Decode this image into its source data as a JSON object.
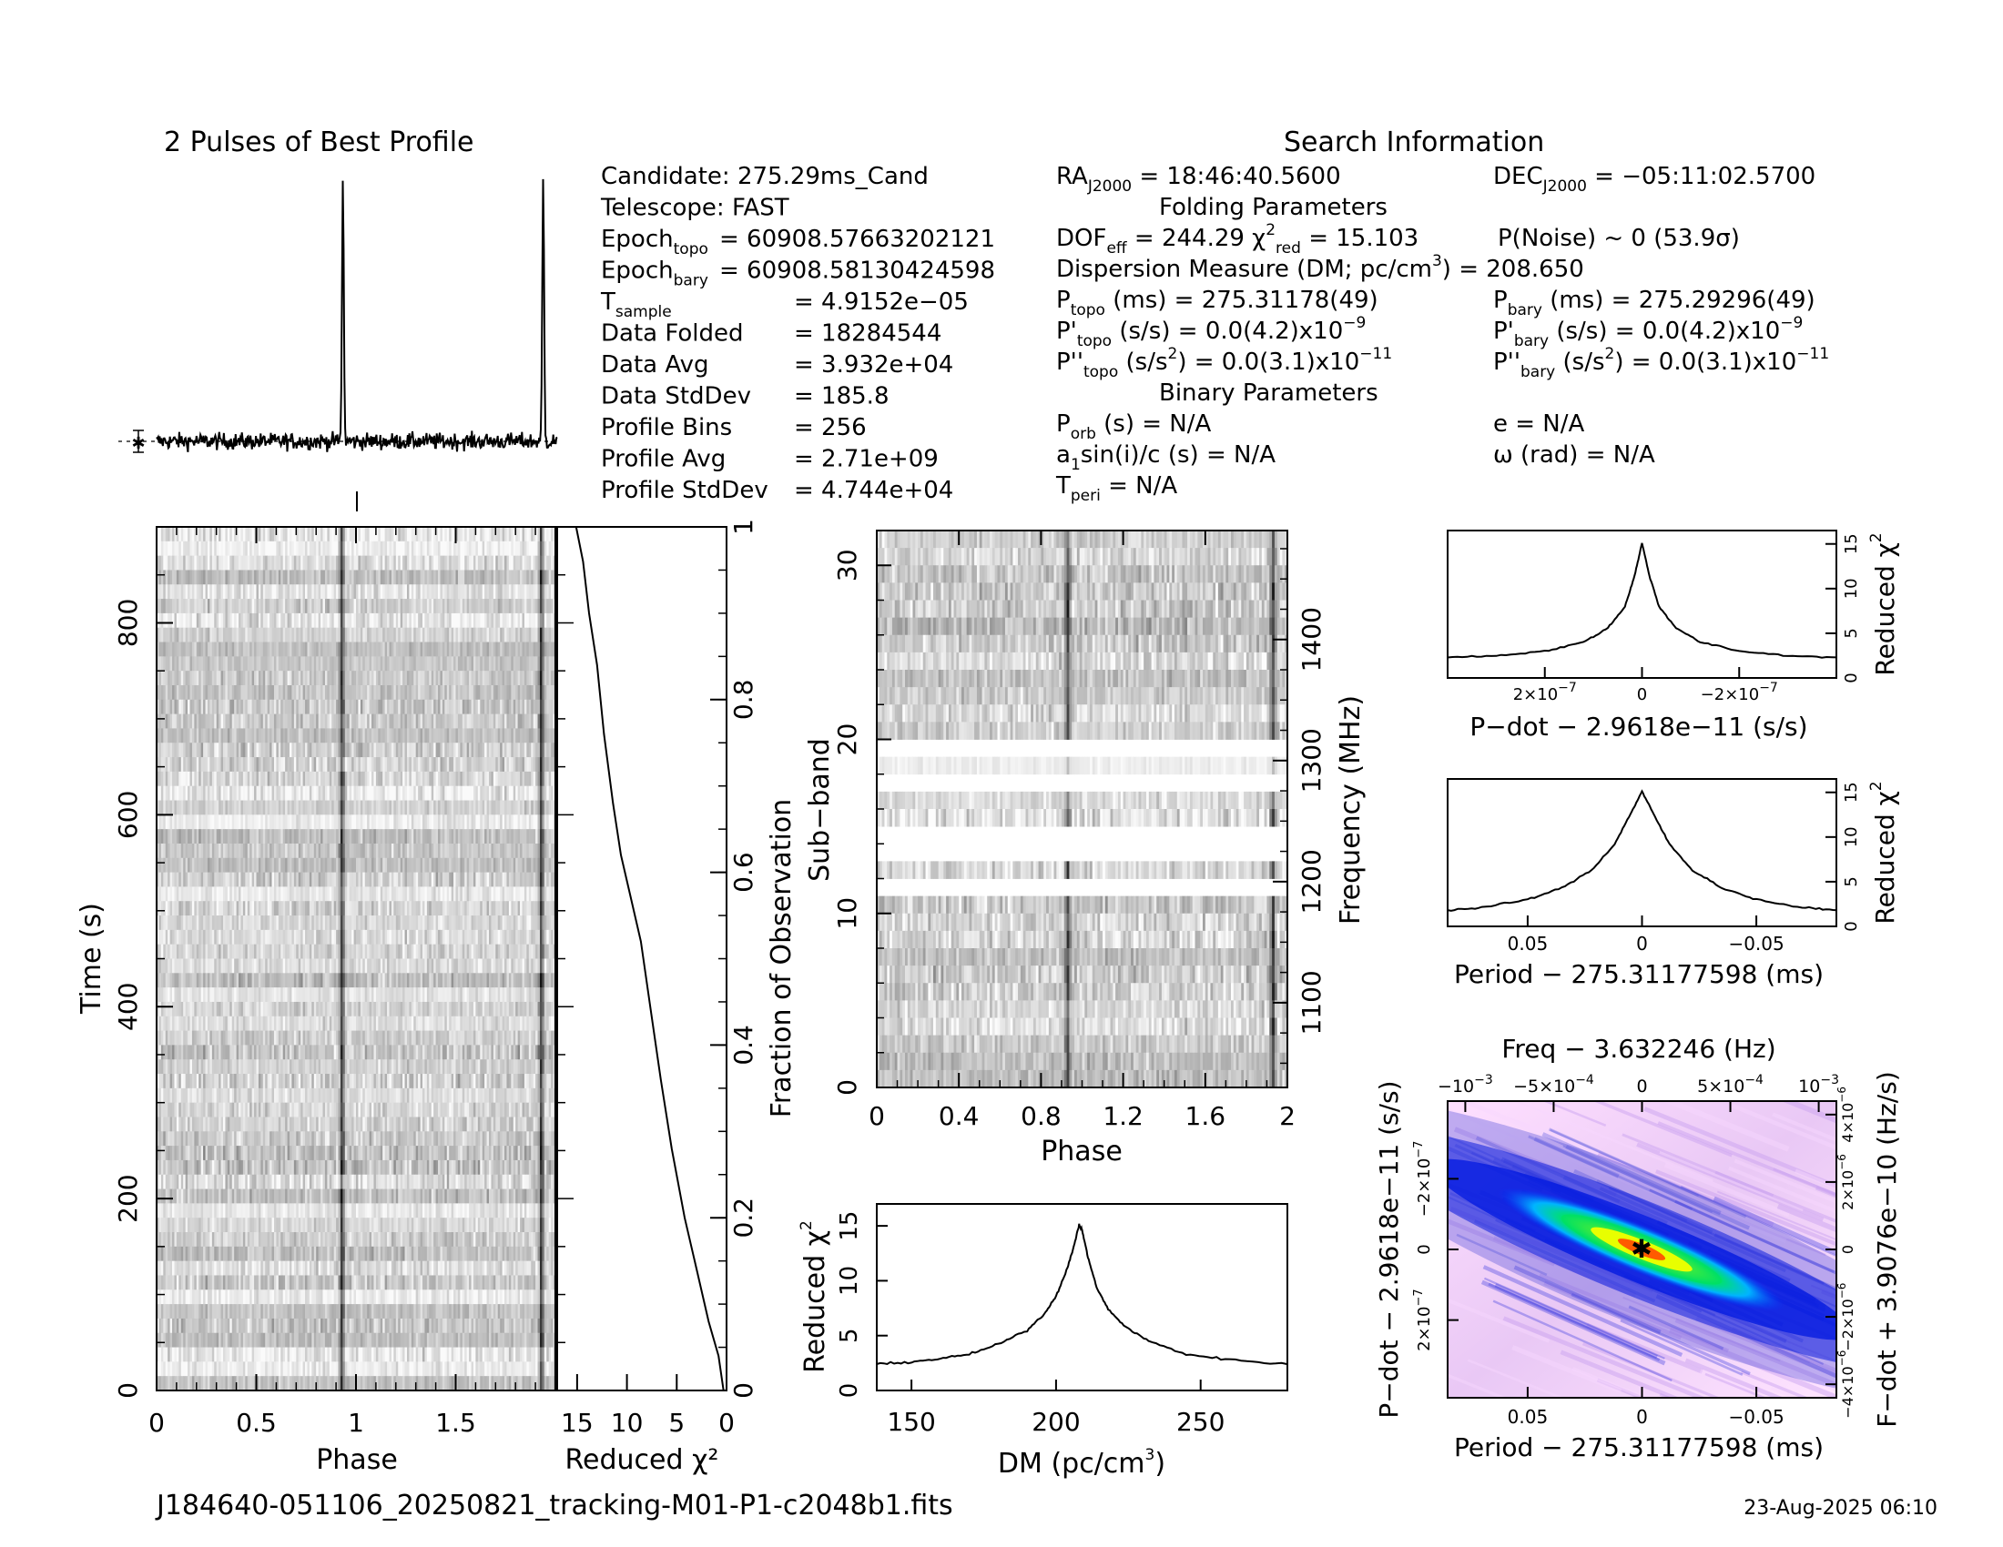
{
  "filename": "J184640-051106_20250821_tracking-M01-P1-c2048b1.fits",
  "timestamp": "23-Aug-2025 06:10",
  "colors": {
    "axis": "#000000",
    "image_dark": "#202020",
    "image_light": "#ffffff"
  },
  "info": {
    "search_title": "Search Information",
    "folding_title": "Folding Parameters",
    "binary_title": "Binary Parameters",
    "left": [
      {
        "label": "Candidate:  275.29ms_Cand",
        "value": ""
      },
      {
        "label": "Telescope:  FAST",
        "value": ""
      },
      {
        "label": "Epoch",
        "sub": "topo",
        "value": "= 60908.57663202121"
      },
      {
        "label": "Epoch",
        "sub": "bary",
        "value": "= 60908.58130424598"
      },
      {
        "label": "T",
        "sub": "sample",
        "value": "=   4.9152e−05"
      },
      {
        "label": "Data Folded",
        "sub": "",
        "value": "=   18284544"
      },
      {
        "label": "Data Avg",
        "sub": "",
        "value": "=   3.932e+04"
      },
      {
        "label": "Data StdDev",
        "sub": "",
        "value": "=   185.8"
      },
      {
        "label": "Profile Bins",
        "sub": "",
        "value": "=   256"
      },
      {
        "label": "Profile Avg",
        "sub": "",
        "value": "=   2.71e+09"
      },
      {
        "label": "Profile StdDev",
        "sub": "",
        "value": "=   4.744e+04"
      }
    ],
    "ra": "= 18:46:40.5600",
    "dec": "= −05:11:02.5700",
    "dof_line": "= 244.29",
    "chi_red": "= 15.103",
    "pnoise": "P(Noise) ~ 0    (53.9σ)",
    "dm_line": "Dispersion Measure (DM; pc/cm",
    "dm_value": ") = 208.650",
    "ptopo": "(ms) =  275.31178(49)",
    "pbary": "(ms) =  275.29296(49)",
    "pdtopo": "(s/s) = 0.0(4.2)x10",
    "pdbary": "(s/s) = 0.0(4.2)x10",
    "pddtopo": ") = 0.0(3.1)x10",
    "pddbary": ") = 0.0(3.1)x10",
    "exp9": "−9",
    "exp11": "−11",
    "porb": "(s) = N/A",
    "asini": "sin(i)/c (s) = N/A",
    "tperi": "= N/A",
    "ecc": "e = N/A",
    "omega": "ω (rad) = N/A"
  },
  "chart_data": [
    {
      "type": "line",
      "name": "profile",
      "title": "2 Pulses of Best Profile",
      "x_range": [
        0,
        2
      ],
      "peak_phases": [
        0.93,
        1.93
      ],
      "baseline": 0.0,
      "peak_height": 1.0
    },
    {
      "type": "heatmap",
      "name": "time-phase",
      "xlabel": "Phase",
      "ylabel": "Time (s)",
      "xlim": [
        0,
        2
      ],
      "ylim": [
        0,
        900
      ],
      "xticks": [
        "0",
        "0.5",
        "1",
        "1.5"
      ],
      "yticks": [
        "0",
        "200",
        "400",
        "600",
        "800"
      ],
      "pulse_phases": [
        0.93,
        1.93
      ]
    },
    {
      "type": "line",
      "name": "chi2-vs-fraction",
      "xlabel": "Reduced χ²",
      "ylabel": "Fraction of Observation",
      "xlim": [
        17,
        0
      ],
      "ylim": [
        0,
        1
      ],
      "xticks": [
        "15",
        "10",
        "5",
        "0"
      ],
      "yticks": [
        "0",
        "0.2",
        "0.4",
        "0.6",
        "0.8",
        "1"
      ],
      "x": [
        0.3,
        0.8,
        1.8,
        3.0,
        4.2,
        5.5,
        6.6,
        7.6,
        8.6,
        9.8,
        10.6,
        11.4,
        12.3,
        13.0,
        13.8,
        14.4,
        15.1
      ],
      "y": [
        0.0,
        0.04,
        0.08,
        0.14,
        0.2,
        0.28,
        0.36,
        0.44,
        0.52,
        0.58,
        0.62,
        0.68,
        0.76,
        0.84,
        0.9,
        0.96,
        1.0
      ]
    },
    {
      "type": "heatmap",
      "name": "subband-phase",
      "xlabel": "Phase",
      "ylabel": "Sub−band",
      "ylabel2": "Frequency (MHz)",
      "xlim": [
        0,
        2
      ],
      "ylim": [
        0,
        32
      ],
      "xticks": [
        "0",
        "0.4",
        "0.8",
        "1.2",
        "1.6",
        "2"
      ],
      "yticks": [
        "0",
        "10",
        "20",
        "30"
      ],
      "y2ticks": [
        "1100",
        "1200",
        "1300",
        "1400"
      ],
      "zapped_subbands": [
        11,
        13,
        14,
        17,
        19
      ],
      "pulse_phases": [
        0.93,
        1.93
      ]
    },
    {
      "type": "line",
      "name": "dm-curve",
      "xlabel": "DM (pc/cm",
      "ylabel": "Reduced χ",
      "xlim": [
        138,
        280
      ],
      "ylim": [
        0,
        17
      ],
      "xticks": [
        "150",
        "200",
        "250"
      ],
      "yticks": [
        "0",
        "5",
        "10",
        "15"
      ],
      "x": [
        138,
        150,
        160,
        170,
        180,
        190,
        196,
        200,
        204,
        206,
        208,
        209,
        211,
        214,
        218,
        224,
        232,
        245,
        260,
        280
      ],
      "y": [
        2.4,
        2.6,
        2.9,
        3.3,
        4.2,
        5.5,
        7.0,
        8.6,
        11.2,
        13.0,
        15.1,
        14.6,
        12.2,
        9.4,
        7.4,
        5.8,
        4.5,
        3.3,
        2.8,
        2.4
      ]
    },
    {
      "type": "line",
      "name": "pdot-curve",
      "xlabel": "P−dot − 2.9618e−11 (s/s)",
      "ylabel": "Reduced χ",
      "xlim": [
        4.0,
        -4.0
      ],
      "ylim": [
        0,
        16.5
      ],
      "xticks": [
        "2×10",
        "0",
        "−2×10"
      ],
      "xtick_exp": "−7",
      "yticks": [
        "0",
        "5",
        "10",
        "15"
      ],
      "x": [
        4.0,
        3.0,
        2.0,
        1.2,
        0.7,
        0.35,
        0.15,
        0.0,
        -0.15,
        -0.35,
        -0.7,
        -1.2,
        -2.0,
        -3.0,
        -4.0
      ],
      "y": [
        2.3,
        2.5,
        3.0,
        4.0,
        5.6,
        8.0,
        11.5,
        15.1,
        11.5,
        8.0,
        5.6,
        4.0,
        3.0,
        2.5,
        2.3
      ]
    },
    {
      "type": "line",
      "name": "period-curve",
      "xlabel": "Period − 275.31177598 (ms)",
      "ylabel": "Reduced χ",
      "xlim": [
        0.085,
        -0.085
      ],
      "ylim": [
        0,
        16.5
      ],
      "xticks": [
        "0.05",
        "0",
        "−0.05"
      ],
      "yticks": [
        "0",
        "5",
        "10",
        "15"
      ],
      "x": [
        0.085,
        0.07,
        0.05,
        0.035,
        0.022,
        0.012,
        0.005,
        0.0,
        -0.005,
        -0.012,
        -0.022,
        -0.035,
        -0.05,
        -0.07,
        -0.085
      ],
      "y": [
        1.8,
        2.1,
        3.0,
        4.3,
        6.3,
        9.2,
        12.6,
        15.1,
        12.6,
        9.2,
        6.3,
        4.3,
        3.0,
        2.1,
        1.8
      ]
    },
    {
      "type": "heatmap",
      "name": "period-pdot",
      "title": "Freq − 3.632246 (Hz)",
      "xlabel": "Period − 275.31177598 (ms)",
      "ylabel": "P−dot − 2.9618e−11 (s/s)",
      "ylabel2": "F−dot + 3.9076e−10 (Hz/s)",
      "xticks": [
        "0.05",
        "0",
        "−0.05"
      ],
      "top_ticks": [
        "−10",
        "−5×10",
        "0",
        "5×10",
        "10"
      ],
      "top_exps": [
        "−3",
        "−4",
        "",
        "−4",
        "−3"
      ],
      "yticks": [
        "−2×10",
        "0",
        "2×10"
      ],
      "ytick_exp": "−7",
      "y2ticks": [
        "4×10",
        "2×10",
        "0",
        "−2×10",
        "−4×10"
      ],
      "y2tick_exp": "−6",
      "best": [
        0,
        0
      ]
    }
  ]
}
